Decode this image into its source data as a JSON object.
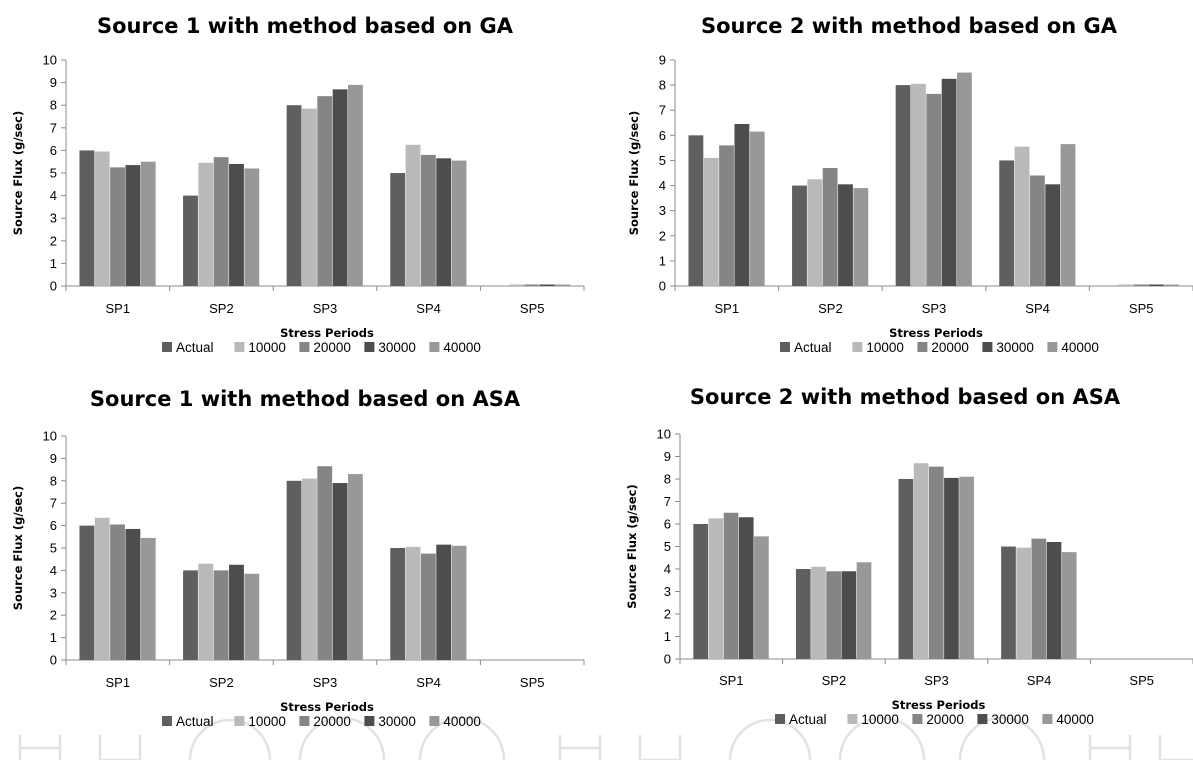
{
  "chart_data": [
    {
      "type": "bar",
      "title": "Source 1 with method based on GA",
      "xlabel": "Stress Periods",
      "ylabel": "Source Flux (g/sec)",
      "categories": [
        "SP1",
        "SP2",
        "SP3",
        "SP4",
        "SP5"
      ],
      "ylim": [
        0,
        10
      ],
      "yticks": [
        0,
        1,
        2,
        3,
        4,
        5,
        6,
        7,
        8,
        9,
        10
      ],
      "legend_position": "bottom",
      "grid": false,
      "series": [
        {
          "name": "Actual",
          "color": "#5f5f5f",
          "values": [
            6.0,
            4.0,
            8.0,
            5.0,
            0.0
          ]
        },
        {
          "name": "10000",
          "color": "#b9b9b9",
          "values": [
            5.95,
            5.45,
            7.85,
            6.25,
            0.05
          ]
        },
        {
          "name": "20000",
          "color": "#858585",
          "values": [
            5.25,
            5.7,
            8.4,
            5.8,
            0.05
          ]
        },
        {
          "name": "30000",
          "color": "#4d4d4d",
          "values": [
            5.35,
            5.4,
            8.7,
            5.65,
            0.05
          ]
        },
        {
          "name": "40000",
          "color": "#989898",
          "values": [
            5.5,
            5.2,
            8.9,
            5.55,
            0.05
          ]
        }
      ]
    },
    {
      "type": "bar",
      "title": "Source 2 with method based on GA",
      "xlabel": "Stress Periods",
      "ylabel": "Source Flux (g/sec)",
      "categories": [
        "SP1",
        "SP2",
        "SP3",
        "SP4",
        "SP5"
      ],
      "ylim": [
        0,
        9
      ],
      "yticks": [
        0,
        1,
        2,
        3,
        4,
        5,
        6,
        7,
        8,
        9
      ],
      "legend_position": "bottom",
      "grid": false,
      "series": [
        {
          "name": "Actual",
          "color": "#5f5f5f",
          "values": [
            6.0,
            4.0,
            8.0,
            5.0,
            0.0
          ]
        },
        {
          "name": "10000",
          "color": "#b9b9b9",
          "values": [
            5.1,
            4.25,
            8.05,
            5.55,
            0.05
          ]
        },
        {
          "name": "20000",
          "color": "#858585",
          "values": [
            5.6,
            4.7,
            7.65,
            4.4,
            0.05
          ]
        },
        {
          "name": "30000",
          "color": "#4d4d4d",
          "values": [
            6.45,
            4.05,
            8.25,
            4.05,
            0.05
          ]
        },
        {
          "name": "40000",
          "color": "#989898",
          "values": [
            6.15,
            3.9,
            8.5,
            5.65,
            0.05
          ]
        }
      ]
    },
    {
      "type": "bar",
      "title": "Source 1 with method based on ASA",
      "xlabel": "Stress Periods",
      "ylabel": "Source Flux (g/sec)",
      "categories": [
        "SP1",
        "SP2",
        "SP3",
        "SP4",
        "SP5"
      ],
      "ylim": [
        0,
        10
      ],
      "yticks": [
        0,
        1,
        2,
        3,
        4,
        5,
        6,
        7,
        8,
        9,
        10
      ],
      "legend_position": "bottom",
      "grid": false,
      "series": [
        {
          "name": "Actual",
          "color": "#5f5f5f",
          "values": [
            6.0,
            4.0,
            8.0,
            5.0,
            0.0
          ]
        },
        {
          "name": "10000",
          "color": "#b9b9b9",
          "values": [
            6.35,
            4.3,
            8.1,
            5.05,
            0.0
          ]
        },
        {
          "name": "20000",
          "color": "#858585",
          "values": [
            6.05,
            4.0,
            8.65,
            4.75,
            0.0
          ]
        },
        {
          "name": "30000",
          "color": "#4d4d4d",
          "values": [
            5.85,
            4.25,
            7.9,
            5.15,
            0.0
          ]
        },
        {
          "name": "40000",
          "color": "#989898",
          "values": [
            5.45,
            3.85,
            8.3,
            5.1,
            0.0
          ]
        }
      ]
    },
    {
      "type": "bar",
      "title": "Source 2 with method based on ASA",
      "xlabel": "Stress Periods",
      "ylabel": "Source Flux (g/sec)",
      "categories": [
        "SP1",
        "SP2",
        "SP3",
        "SP4",
        "SP5"
      ],
      "ylim": [
        0,
        10
      ],
      "yticks": [
        0,
        1,
        2,
        3,
        4,
        5,
        6,
        7,
        8,
        9,
        10
      ],
      "legend_position": "bottom",
      "grid": false,
      "series": [
        {
          "name": "Actual",
          "color": "#5f5f5f",
          "values": [
            6.0,
            4.0,
            8.0,
            5.0,
            0.0
          ]
        },
        {
          "name": "10000",
          "color": "#b9b9b9",
          "values": [
            6.25,
            4.1,
            8.7,
            4.95,
            0.0
          ]
        },
        {
          "name": "20000",
          "color": "#858585",
          "values": [
            6.5,
            3.9,
            8.55,
            5.35,
            0.0
          ]
        },
        {
          "name": "30000",
          "color": "#4d4d4d",
          "values": [
            6.3,
            3.9,
            8.05,
            5.2,
            0.0
          ]
        },
        {
          "name": "40000",
          "color": "#989898",
          "values": [
            5.45,
            4.3,
            8.1,
            4.75,
            0.0
          ]
        }
      ]
    }
  ]
}
